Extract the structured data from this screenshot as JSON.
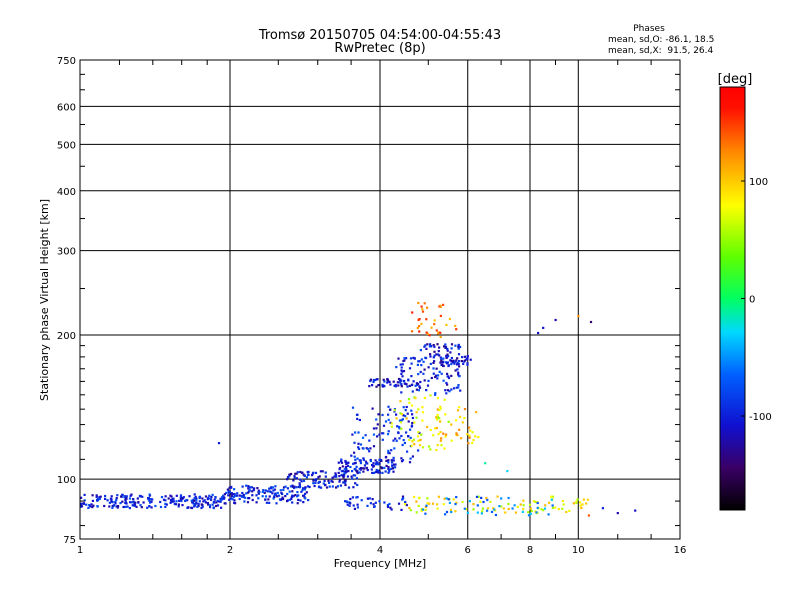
{
  "chart_data": {
    "type": "scatter",
    "title": "Tromsø 20150705 04:54:00-04:55:43",
    "subtitle": "RwPretec (8p)",
    "xlabel": "Frequency [MHz]",
    "ylabel": "Stationary phase Virtual Height [km]",
    "x_scale": "log",
    "y_scale": "log",
    "xlim": [
      1,
      16
    ],
    "ylim": [
      75,
      750
    ],
    "x_ticks": [
      1,
      2,
      4,
      6,
      8,
      10,
      16
    ],
    "x_ticklabels": [
      "1",
      "2",
      "4",
      "6",
      "8",
      "10",
      "16"
    ],
    "y_ticks": [
      75,
      100,
      200,
      300,
      400,
      500,
      600,
      750
    ],
    "y_ticklabels": [
      "75",
      "100",
      "200",
      "300",
      "400",
      "500",
      "600",
      "750"
    ],
    "grid": true,
    "phase_stats": {
      "heading": "Phases",
      "line_o": "mean, sd,O: -86.1, 18.5",
      "line_x": "mean, sd,X:  91.5, 26.4"
    },
    "colorbar": {
      "label": "[deg]",
      "min": -180,
      "max": 180,
      "ticks": [
        100,
        0,
        -100
      ],
      "ticklabels": [
        "100",
        "0",
        "-100"
      ],
      "colormap": "rainbow"
    },
    "series": [
      {
        "clusters": [
          {
            "x_range": [
              1.0,
              1.95
            ],
            "y_range": [
              87,
              93
            ],
            "phase": -100,
            "count": 230
          },
          {
            "x_range": [
              1.95,
              2.9
            ],
            "y_range": [
              89,
              97
            ],
            "phase": -95,
            "count": 150
          },
          {
            "x_range": [
              2.6,
              3.6
            ],
            "y_range": [
              96,
              104
            ],
            "phase": -105,
            "count": 110
          },
          {
            "x_range": [
              3.3,
              4.3
            ],
            "y_range": [
              103,
              110
            ],
            "phase": -100,
            "count": 110
          },
          {
            "x_range": [
              3.5,
              4.8
            ],
            "y_range": [
              108,
              142
            ],
            "phase": -95,
            "count": 110
          },
          {
            "x_range": [
              3.8,
              4.6
            ],
            "y_range": [
              156,
              162
            ],
            "phase": -105,
            "count": 45
          },
          {
            "x_range": [
              4.3,
              5.8
            ],
            "y_range": [
              150,
              180
            ],
            "phase": -100,
            "count": 110
          },
          {
            "x_range": [
              4.8,
              5.8
            ],
            "y_range": [
              172,
              192
            ],
            "phase": -105,
            "count": 60
          },
          {
            "x_range": [
              5.8,
              6.1
            ],
            "y_range": [
              173,
              181
            ],
            "phase": -110,
            "count": 14
          },
          {
            "x_range": [
              4.2,
              5.6
            ],
            "y_range": [
              115,
              150
            ],
            "phase": 80,
            "count": 60
          },
          {
            "x_range": [
              5.2,
              6.3
            ],
            "y_range": [
              118,
              142
            ],
            "phase": 100,
            "count": 35
          },
          {
            "x_range": [
              4.6,
              5.8
            ],
            "y_range": [
              198,
              235
            ],
            "phase": 130,
            "count": 35
          },
          {
            "x_range": [
              3.4,
              4.6
            ],
            "y_range": [
              86,
              92
            ],
            "phase": -100,
            "count": 40
          },
          {
            "x_range": [
              4.3,
              10.5
            ],
            "y_range": [
              85,
              92
            ],
            "phase": 80,
            "count": 90
          },
          {
            "x_range": [
              4.8,
              9.0
            ],
            "y_range": [
              84,
              92
            ],
            "phase": -60,
            "count": 40
          }
        ],
        "points": [
          {
            "x": 8.3,
            "y": 202,
            "phase": -110
          },
          {
            "x": 8.5,
            "y": 207,
            "phase": -110
          },
          {
            "x": 9.0,
            "y": 215,
            "phase": -120
          },
          {
            "x": 10.0,
            "y": 219,
            "phase": 120
          },
          {
            "x": 10.6,
            "y": 213,
            "phase": -140
          },
          {
            "x": 1.9,
            "y": 119,
            "phase": -100
          },
          {
            "x": 7.2,
            "y": 104,
            "phase": -30
          },
          {
            "x": 6.5,
            "y": 108,
            "phase": -10
          },
          {
            "x": 13.0,
            "y": 86,
            "phase": -110
          },
          {
            "x": 11.2,
            "y": 87,
            "phase": -100
          },
          {
            "x": 12.0,
            "y": 85,
            "phase": -120
          },
          {
            "x": 10.5,
            "y": 84,
            "phase": 140
          }
        ]
      }
    ]
  }
}
